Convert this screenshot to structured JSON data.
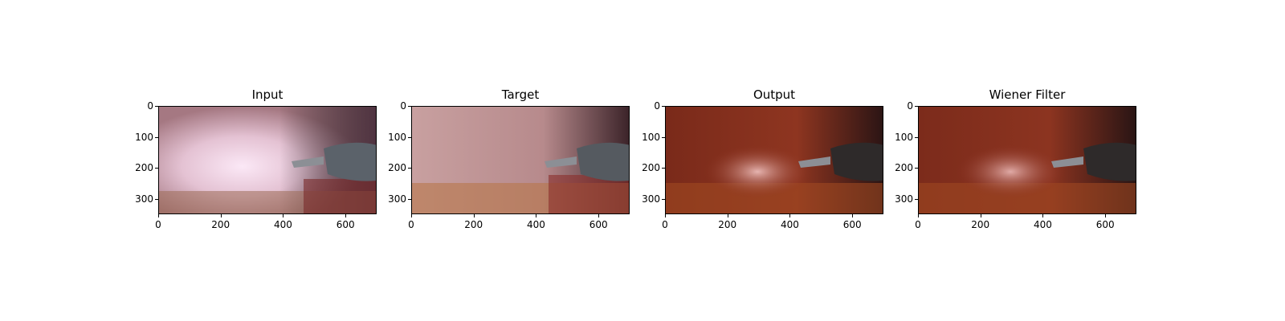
{
  "panels": [
    {
      "title": "Input"
    },
    {
      "title": "Target"
    },
    {
      "title": "Output"
    },
    {
      "title": "Wiener Filter"
    }
  ],
  "axes": {
    "y_ticks": [
      "0",
      "100",
      "200",
      "300"
    ],
    "x_ticks": [
      "0",
      "200",
      "400",
      "600"
    ]
  },
  "colors": {
    "input_tissue": "#b88c95",
    "input_haze": "#f3dcef",
    "target_tissue": "#c49a9a",
    "output_tissue": "#8a2f1c",
    "wiener_tissue": "#8a3020",
    "instrument": "#5b626a"
  }
}
